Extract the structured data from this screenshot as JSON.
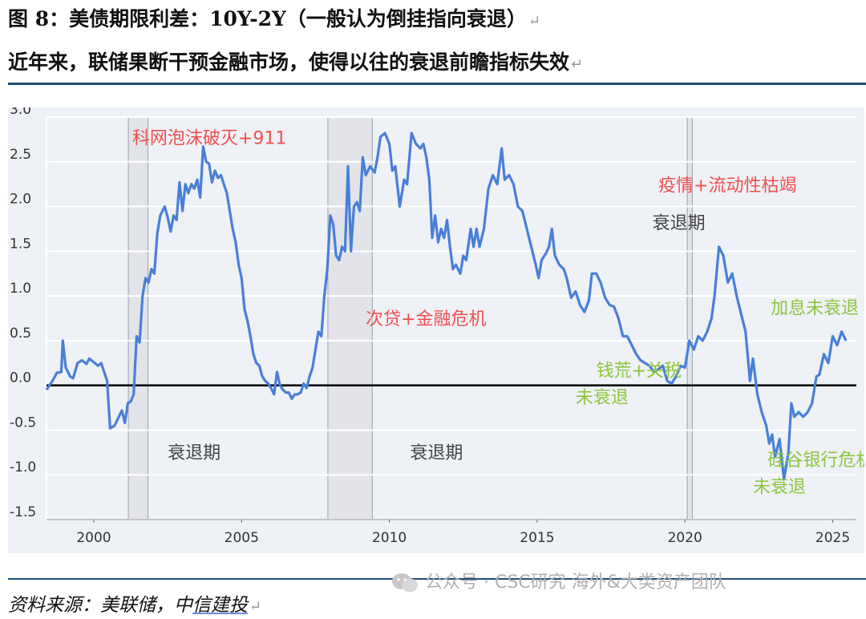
{
  "title_line1": "图 8：美债期限利差：10Y-2Y（一般认为倒挂指向衰退）",
  "title_line2": "近年来，联储果断干预金融市场，使得以往的衰退前瞻指标失效",
  "source": "资料来源：美联储，中信建投",
  "watermark": "公众号 · CSC研究 海外&大类资产团队",
  "colors": {
    "line": "#4a7fd8",
    "recession_shade": "#e2e4e9",
    "plot_bg": "#eef1f6",
    "red_annotation": "#f05050",
    "green_annotation": "#8cc63f",
    "zero_line": "#000000",
    "rule": "#1f4e79"
  },
  "chart_data": {
    "type": "line",
    "title": "",
    "xlabel": "",
    "ylabel": "",
    "xlim": [
      1998.4,
      2025.8
    ],
    "ylim": [
      -1.5,
      3.0
    ],
    "grid": true,
    "ytick_labels": [
      "3.0",
      "2.5",
      "2.0",
      "1.5",
      "1.0",
      "0.5",
      "0.0",
      "-0.5",
      "-1.0",
      "-1.5"
    ],
    "xtick_labels": [
      "2000",
      "2005",
      "2010",
      "2015",
      "2020",
      "2025"
    ],
    "recessions": [
      [
        2001.17,
        2001.83
      ],
      [
        2007.92,
        2009.42
      ],
      [
        2020.08,
        2020.25
      ]
    ],
    "series": [
      {
        "values": [
          [
            1998.4,
            -0.05
          ],
          [
            1998.6,
            0.05
          ],
          [
            1998.75,
            0.14
          ],
          [
            1998.9,
            0.15
          ],
          [
            1998.95,
            0.5
          ],
          [
            1999.05,
            0.2
          ],
          [
            1999.2,
            0.1
          ],
          [
            1999.3,
            0.08
          ],
          [
            1999.45,
            0.25
          ],
          [
            1999.6,
            0.28
          ],
          [
            1999.75,
            0.24
          ],
          [
            1999.85,
            0.3
          ],
          [
            2000.0,
            0.26
          ],
          [
            2000.15,
            0.22
          ],
          [
            2000.25,
            0.25
          ],
          [
            2000.35,
            0.15
          ],
          [
            2000.45,
            0.05
          ],
          [
            2000.55,
            -0.48
          ],
          [
            2000.7,
            -0.45
          ],
          [
            2000.85,
            -0.35
          ],
          [
            2000.95,
            -0.28
          ],
          [
            2001.05,
            -0.42
          ],
          [
            2001.15,
            -0.2
          ],
          [
            2001.25,
            -0.18
          ],
          [
            2001.35,
            -0.1
          ],
          [
            2001.45,
            0.55
          ],
          [
            2001.55,
            0.48
          ],
          [
            2001.65,
            1.0
          ],
          [
            2001.75,
            1.2
          ],
          [
            2001.85,
            1.15
          ],
          [
            2001.95,
            1.3
          ],
          [
            2002.05,
            1.25
          ],
          [
            2002.15,
            1.7
          ],
          [
            2002.25,
            1.9
          ],
          [
            2002.4,
            2.0
          ],
          [
            2002.5,
            1.88
          ],
          [
            2002.6,
            1.72
          ],
          [
            2002.7,
            1.9
          ],
          [
            2002.8,
            1.85
          ],
          [
            2002.9,
            2.27
          ],
          [
            2003.0,
            1.95
          ],
          [
            2003.1,
            2.25
          ],
          [
            2003.2,
            2.15
          ],
          [
            2003.3,
            2.25
          ],
          [
            2003.4,
            2.2
          ],
          [
            2003.5,
            2.3
          ],
          [
            2003.6,
            2.1
          ],
          [
            2003.7,
            2.67
          ],
          [
            2003.8,
            2.5
          ],
          [
            2003.9,
            2.48
          ],
          [
            2004.0,
            2.27
          ],
          [
            2004.1,
            2.4
          ],
          [
            2004.2,
            2.32
          ],
          [
            2004.3,
            2.35
          ],
          [
            2004.4,
            2.25
          ],
          [
            2004.5,
            2.15
          ],
          [
            2004.6,
            1.95
          ],
          [
            2004.7,
            1.75
          ],
          [
            2004.8,
            1.6
          ],
          [
            2004.9,
            1.35
          ],
          [
            2005.0,
            1.2
          ],
          [
            2005.1,
            0.85
          ],
          [
            2005.2,
            0.72
          ],
          [
            2005.3,
            0.55
          ],
          [
            2005.4,
            0.35
          ],
          [
            2005.5,
            0.25
          ],
          [
            2005.6,
            0.22
          ],
          [
            2005.7,
            0.1
          ],
          [
            2005.8,
            0.05
          ],
          [
            2005.9,
            0.02
          ],
          [
            2006.0,
            -0.03
          ],
          [
            2006.1,
            -0.1
          ],
          [
            2006.2,
            0.15
          ],
          [
            2006.3,
            0.0
          ],
          [
            2006.4,
            -0.05
          ],
          [
            2006.5,
            -0.08
          ],
          [
            2006.6,
            -0.08
          ],
          [
            2006.7,
            -0.15
          ],
          [
            2006.8,
            -0.1
          ],
          [
            2006.9,
            -0.1
          ],
          [
            2007.0,
            -0.08
          ],
          [
            2007.1,
            0.02
          ],
          [
            2007.2,
            -0.03
          ],
          [
            2007.3,
            0.1
          ],
          [
            2007.4,
            0.2
          ],
          [
            2007.5,
            0.4
          ],
          [
            2007.6,
            0.6
          ],
          [
            2007.7,
            0.55
          ],
          [
            2007.8,
            1.0
          ],
          [
            2007.9,
            1.3
          ],
          [
            2008.0,
            1.9
          ],
          [
            2008.1,
            1.8
          ],
          [
            2008.2,
            1.45
          ],
          [
            2008.3,
            1.4
          ],
          [
            2008.4,
            1.55
          ],
          [
            2008.5,
            1.5
          ],
          [
            2008.6,
            2.45
          ],
          [
            2008.7,
            1.5
          ],
          [
            2008.8,
            2.0
          ],
          [
            2008.9,
            2.05
          ],
          [
            2009.0,
            1.95
          ],
          [
            2009.1,
            2.55
          ],
          [
            2009.2,
            2.35
          ],
          [
            2009.35,
            2.45
          ],
          [
            2009.5,
            2.38
          ],
          [
            2009.6,
            2.55
          ],
          [
            2009.7,
            2.78
          ],
          [
            2009.85,
            2.82
          ],
          [
            2010.0,
            2.7
          ],
          [
            2010.1,
            2.4
          ],
          [
            2010.2,
            2.45
          ],
          [
            2010.35,
            2.0
          ],
          [
            2010.5,
            2.3
          ],
          [
            2010.6,
            2.25
          ],
          [
            2010.75,
            2.82
          ],
          [
            2010.9,
            2.7
          ],
          [
            2011.05,
            2.65
          ],
          [
            2011.15,
            2.7
          ],
          [
            2011.25,
            2.55
          ],
          [
            2011.35,
            2.3
          ],
          [
            2011.45,
            1.65
          ],
          [
            2011.55,
            1.9
          ],
          [
            2011.65,
            1.6
          ],
          [
            2011.75,
            1.75
          ],
          [
            2011.85,
            1.65
          ],
          [
            2011.95,
            1.85
          ],
          [
            2012.05,
            1.55
          ],
          [
            2012.15,
            1.3
          ],
          [
            2012.25,
            1.35
          ],
          [
            2012.4,
            1.25
          ],
          [
            2012.5,
            1.45
          ],
          [
            2012.6,
            1.4
          ],
          [
            2012.75,
            1.75
          ],
          [
            2012.85,
            1.55
          ],
          [
            2012.95,
            1.75
          ],
          [
            2013.05,
            1.55
          ],
          [
            2013.2,
            1.75
          ],
          [
            2013.35,
            2.2
          ],
          [
            2013.5,
            2.35
          ],
          [
            2013.65,
            2.25
          ],
          [
            2013.8,
            2.65
          ],
          [
            2013.9,
            2.3
          ],
          [
            2014.05,
            2.35
          ],
          [
            2014.2,
            2.25
          ],
          [
            2014.35,
            2.0
          ],
          [
            2014.5,
            1.95
          ],
          [
            2014.65,
            1.75
          ],
          [
            2014.8,
            1.55
          ],
          [
            2014.95,
            1.35
          ],
          [
            2015.05,
            1.2
          ],
          [
            2015.15,
            1.4
          ],
          [
            2015.3,
            1.48
          ],
          [
            2015.4,
            1.55
          ],
          [
            2015.5,
            1.75
          ],
          [
            2015.6,
            1.45
          ],
          [
            2015.75,
            1.35
          ],
          [
            2015.9,
            1.3
          ],
          [
            2016.0,
            1.2
          ],
          [
            2016.15,
            0.98
          ],
          [
            2016.3,
            1.05
          ],
          [
            2016.45,
            0.9
          ],
          [
            2016.6,
            0.82
          ],
          [
            2016.75,
            0.95
          ],
          [
            2016.85,
            1.25
          ],
          [
            2017.0,
            1.25
          ],
          [
            2017.15,
            1.15
          ],
          [
            2017.3,
            0.98
          ],
          [
            2017.45,
            0.9
          ],
          [
            2017.6,
            0.88
          ],
          [
            2017.75,
            0.75
          ],
          [
            2017.9,
            0.55
          ],
          [
            2018.05,
            0.55
          ],
          [
            2018.2,
            0.45
          ],
          [
            2018.35,
            0.35
          ],
          [
            2018.5,
            0.28
          ],
          [
            2018.65,
            0.25
          ],
          [
            2018.8,
            0.22
          ],
          [
            2018.95,
            0.15
          ],
          [
            2019.1,
            0.18
          ],
          [
            2019.25,
            0.22
          ],
          [
            2019.4,
            0.05
          ],
          [
            2019.55,
            0.02
          ],
          [
            2019.7,
            0.1
          ],
          [
            2019.85,
            0.22
          ],
          [
            2020.0,
            0.2
          ],
          [
            2020.15,
            0.5
          ],
          [
            2020.3,
            0.4
          ],
          [
            2020.45,
            0.55
          ],
          [
            2020.6,
            0.5
          ],
          [
            2020.75,
            0.6
          ],
          [
            2020.9,
            0.75
          ],
          [
            2021.0,
            1.0
          ],
          [
            2021.15,
            1.55
          ],
          [
            2021.3,
            1.45
          ],
          [
            2021.45,
            1.15
          ],
          [
            2021.6,
            1.25
          ],
          [
            2021.75,
            1.0
          ],
          [
            2021.9,
            0.8
          ],
          [
            2022.05,
            0.6
          ],
          [
            2022.2,
            0.05
          ],
          [
            2022.3,
            0.3
          ],
          [
            2022.45,
            -0.1
          ],
          [
            2022.6,
            -0.3
          ],
          [
            2022.75,
            -0.45
          ],
          [
            2022.85,
            -0.65
          ],
          [
            2022.95,
            -0.55
          ],
          [
            2023.05,
            -0.8
          ],
          [
            2023.2,
            -0.6
          ],
          [
            2023.35,
            -1.05
          ],
          [
            2023.5,
            -0.75
          ],
          [
            2023.6,
            -0.2
          ],
          [
            2023.7,
            -0.35
          ],
          [
            2023.85,
            -0.3
          ],
          [
            2024.0,
            -0.35
          ],
          [
            2024.15,
            -0.3
          ],
          [
            2024.3,
            -0.2
          ],
          [
            2024.45,
            0.1
          ],
          [
            2024.55,
            0.12
          ],
          [
            2024.7,
            0.35
          ],
          [
            2024.85,
            0.25
          ],
          [
            2025.0,
            0.55
          ],
          [
            2025.15,
            0.45
          ],
          [
            2025.3,
            0.6
          ],
          [
            2025.45,
            0.5
          ]
        ]
      }
    ],
    "annotations": [
      {
        "text": "科网泡沫破灭+911",
        "x": 2001.3,
        "y": 2.7,
        "color": "red"
      },
      {
        "text": "衰退期",
        "x": 2002.5,
        "y": -0.82,
        "color": "gray"
      },
      {
        "text": "次贷+金融危机",
        "x": 2009.2,
        "y": 0.68,
        "color": "red"
      },
      {
        "text": "衰退期",
        "x": 2010.7,
        "y": -0.82,
        "color": "gray"
      },
      {
        "text": "疫情+流动性枯竭",
        "x": 2019.1,
        "y": 2.17,
        "color": "red"
      },
      {
        "text": "衰退期",
        "x": 2018.9,
        "y": 1.75,
        "color": "gray"
      },
      {
        "text": "加息未衰退",
        "x": 2022.9,
        "y": 0.8,
        "color": "green"
      },
      {
        "text": "钱荒+关税",
        "x": 2017.0,
        "y": 0.1,
        "color": "green"
      },
      {
        "text": "未衰退",
        "x": 2016.3,
        "y": -0.2,
        "color": "green"
      },
      {
        "text": "硅谷银行危机",
        "x": 2022.8,
        "y": -0.9,
        "color": "green"
      },
      {
        "text": "未衰退",
        "x": 2022.3,
        "y": -1.2,
        "color": "green"
      }
    ]
  }
}
